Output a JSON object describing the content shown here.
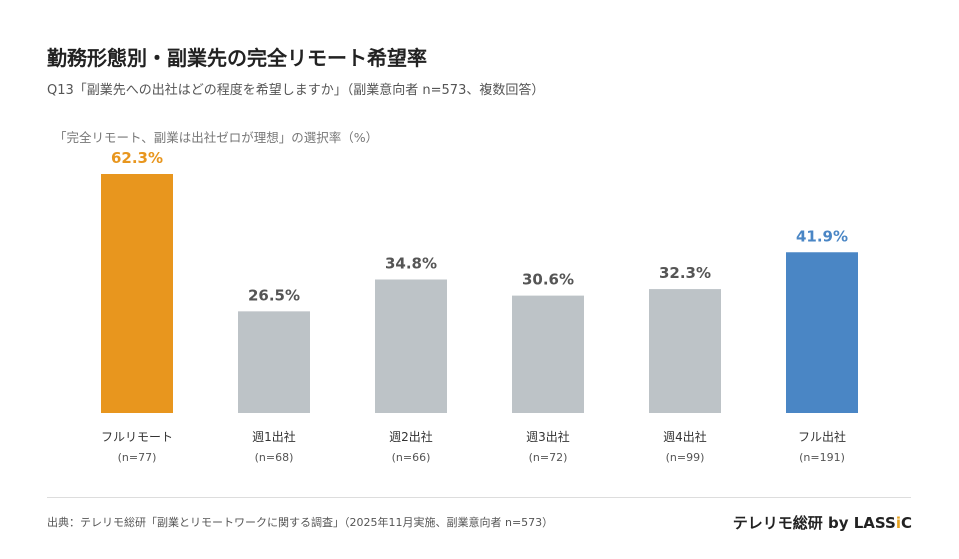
{
  "header": {
    "title": "勤務形態別・副業先の完全リモート希望率",
    "subtitle": "Q13「副業先への出社はどの程度を希望しますか」（副業意向者 n=573、複数回答）"
  },
  "chart_data": {
    "type": "bar",
    "title": "勤務形態別・副業先の完全リモート希望率",
    "ylabel": "「完全リモート、副業は出社ゼロが理想」の選択率（%）",
    "categories": [
      "フルリモート",
      "週1出社",
      "週2出社",
      "週3出社",
      "週4出社",
      "フル出社"
    ],
    "sample_sizes": [
      "(n=77)",
      "(n=68)",
      "(n=66)",
      "(n=72)",
      "(n=99)",
      "(n=191)"
    ],
    "values": [
      62.3,
      26.5,
      34.8,
      30.6,
      32.3,
      41.9
    ],
    "data_labels": [
      "62.3%",
      "26.5%",
      "34.8%",
      "30.6%",
      "32.3%",
      "41.9%"
    ],
    "colors": [
      "#e8961e",
      "#bdc3c7",
      "#bdc3c7",
      "#bdc3c7",
      "#bdc3c7",
      "#4a86c5"
    ],
    "label_colors": [
      "#e8961e",
      "#555555",
      "#555555",
      "#555555",
      "#555555",
      "#4a86c5"
    ],
    "ylim": [
      0,
      62.3
    ],
    "grid": false
  },
  "footer": {
    "source": "出典：テレリモ総研「副業とリモートワークに関する調査」（2025年11月実施、副業意向者 n=573）",
    "brand_prefix": "テレリモ総研 by LASS",
    "brand_i": "i",
    "brand_suffix": "C"
  }
}
